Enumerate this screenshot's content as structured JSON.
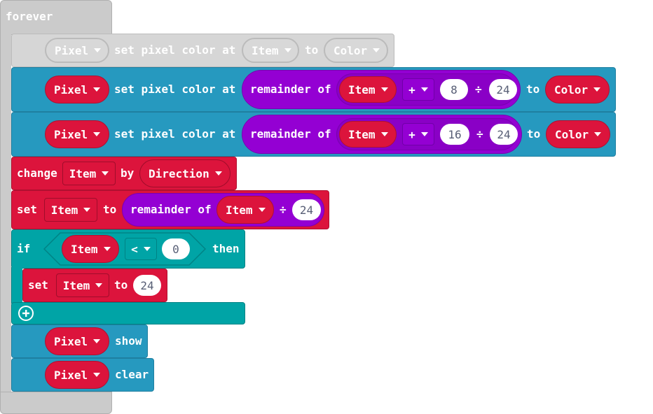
{
  "forever": {
    "label": "forever"
  },
  "ghost_row": {
    "target": "Pixel",
    "action": "set pixel color at",
    "index": "Item",
    "to": "to",
    "color": "Color"
  },
  "row1": {
    "target": "Pixel",
    "action": "set pixel color at",
    "remainder": "remainder of",
    "var": "Item",
    "op": "+",
    "add": "8",
    "div": "÷",
    "mod": "24",
    "to": "to",
    "color": "Color"
  },
  "row2": {
    "target": "Pixel",
    "action": "set pixel color at",
    "remainder": "remainder of",
    "var": "Item",
    "op": "+",
    "add": "16",
    "div": "÷",
    "mod": "24",
    "to": "to",
    "color": "Color"
  },
  "change": {
    "label": "change",
    "var": "Item",
    "by": "by",
    "value": "Direction"
  },
  "set1": {
    "label": "set",
    "var": "Item",
    "to": "to",
    "remainder": "remainder of",
    "inner_var": "Item",
    "div": "÷",
    "mod": "24"
  },
  "if_block": {
    "if": "if",
    "var": "Item",
    "op": "<",
    "value": "0",
    "then": "then"
  },
  "set2": {
    "label": "set",
    "var": "Item",
    "to": "to",
    "value": "24"
  },
  "show": {
    "target": "Pixel",
    "action": "show"
  },
  "clear": {
    "target": "Pixel",
    "action": "clear"
  },
  "colors": {
    "loops": "#cbcbcb",
    "neopixel": "#2699bf",
    "variables": "#dc143c",
    "math": "#9400d3",
    "logic": "#00a4a6"
  }
}
